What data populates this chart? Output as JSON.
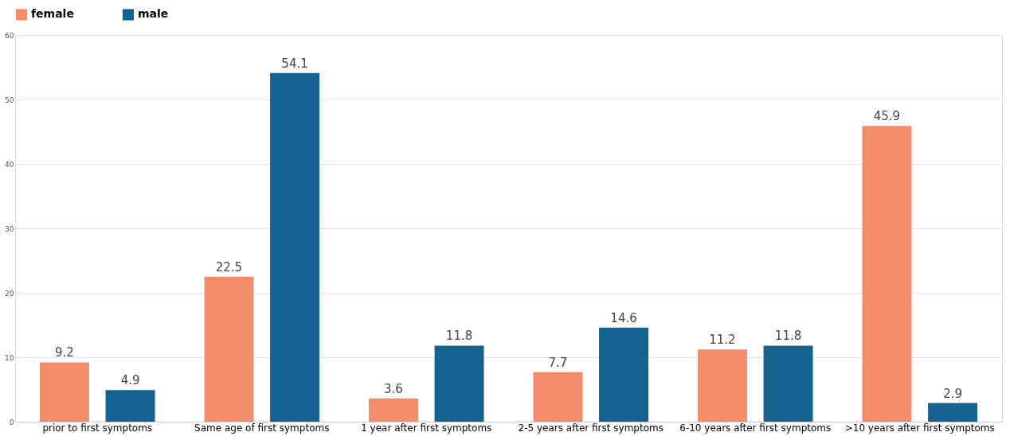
{
  "chart_data": {
    "type": "bar",
    "categories": [
      "prior to first symptoms",
      "Same age of first symptoms",
      "1 year after first symptoms",
      "2-5 years after first symptoms",
      "6-10 years after first symptoms",
      ">10 years after first symptoms"
    ],
    "series": [
      {
        "name": "female",
        "color": "#f28c6b",
        "values": [
          9.2,
          22.5,
          3.6,
          7.7,
          11.2,
          45.9
        ]
      },
      {
        "name": "male",
        "color": "#14628f",
        "values": [
          4.9,
          54.1,
          11.8,
          14.6,
          11.8,
          2.9
        ]
      }
    ],
    "ylim": [
      0,
      60
    ],
    "yticks": [
      0,
      10,
      20,
      30,
      40,
      50,
      60
    ],
    "grid": "y",
    "legend": "top",
    "data_labels": true
  }
}
